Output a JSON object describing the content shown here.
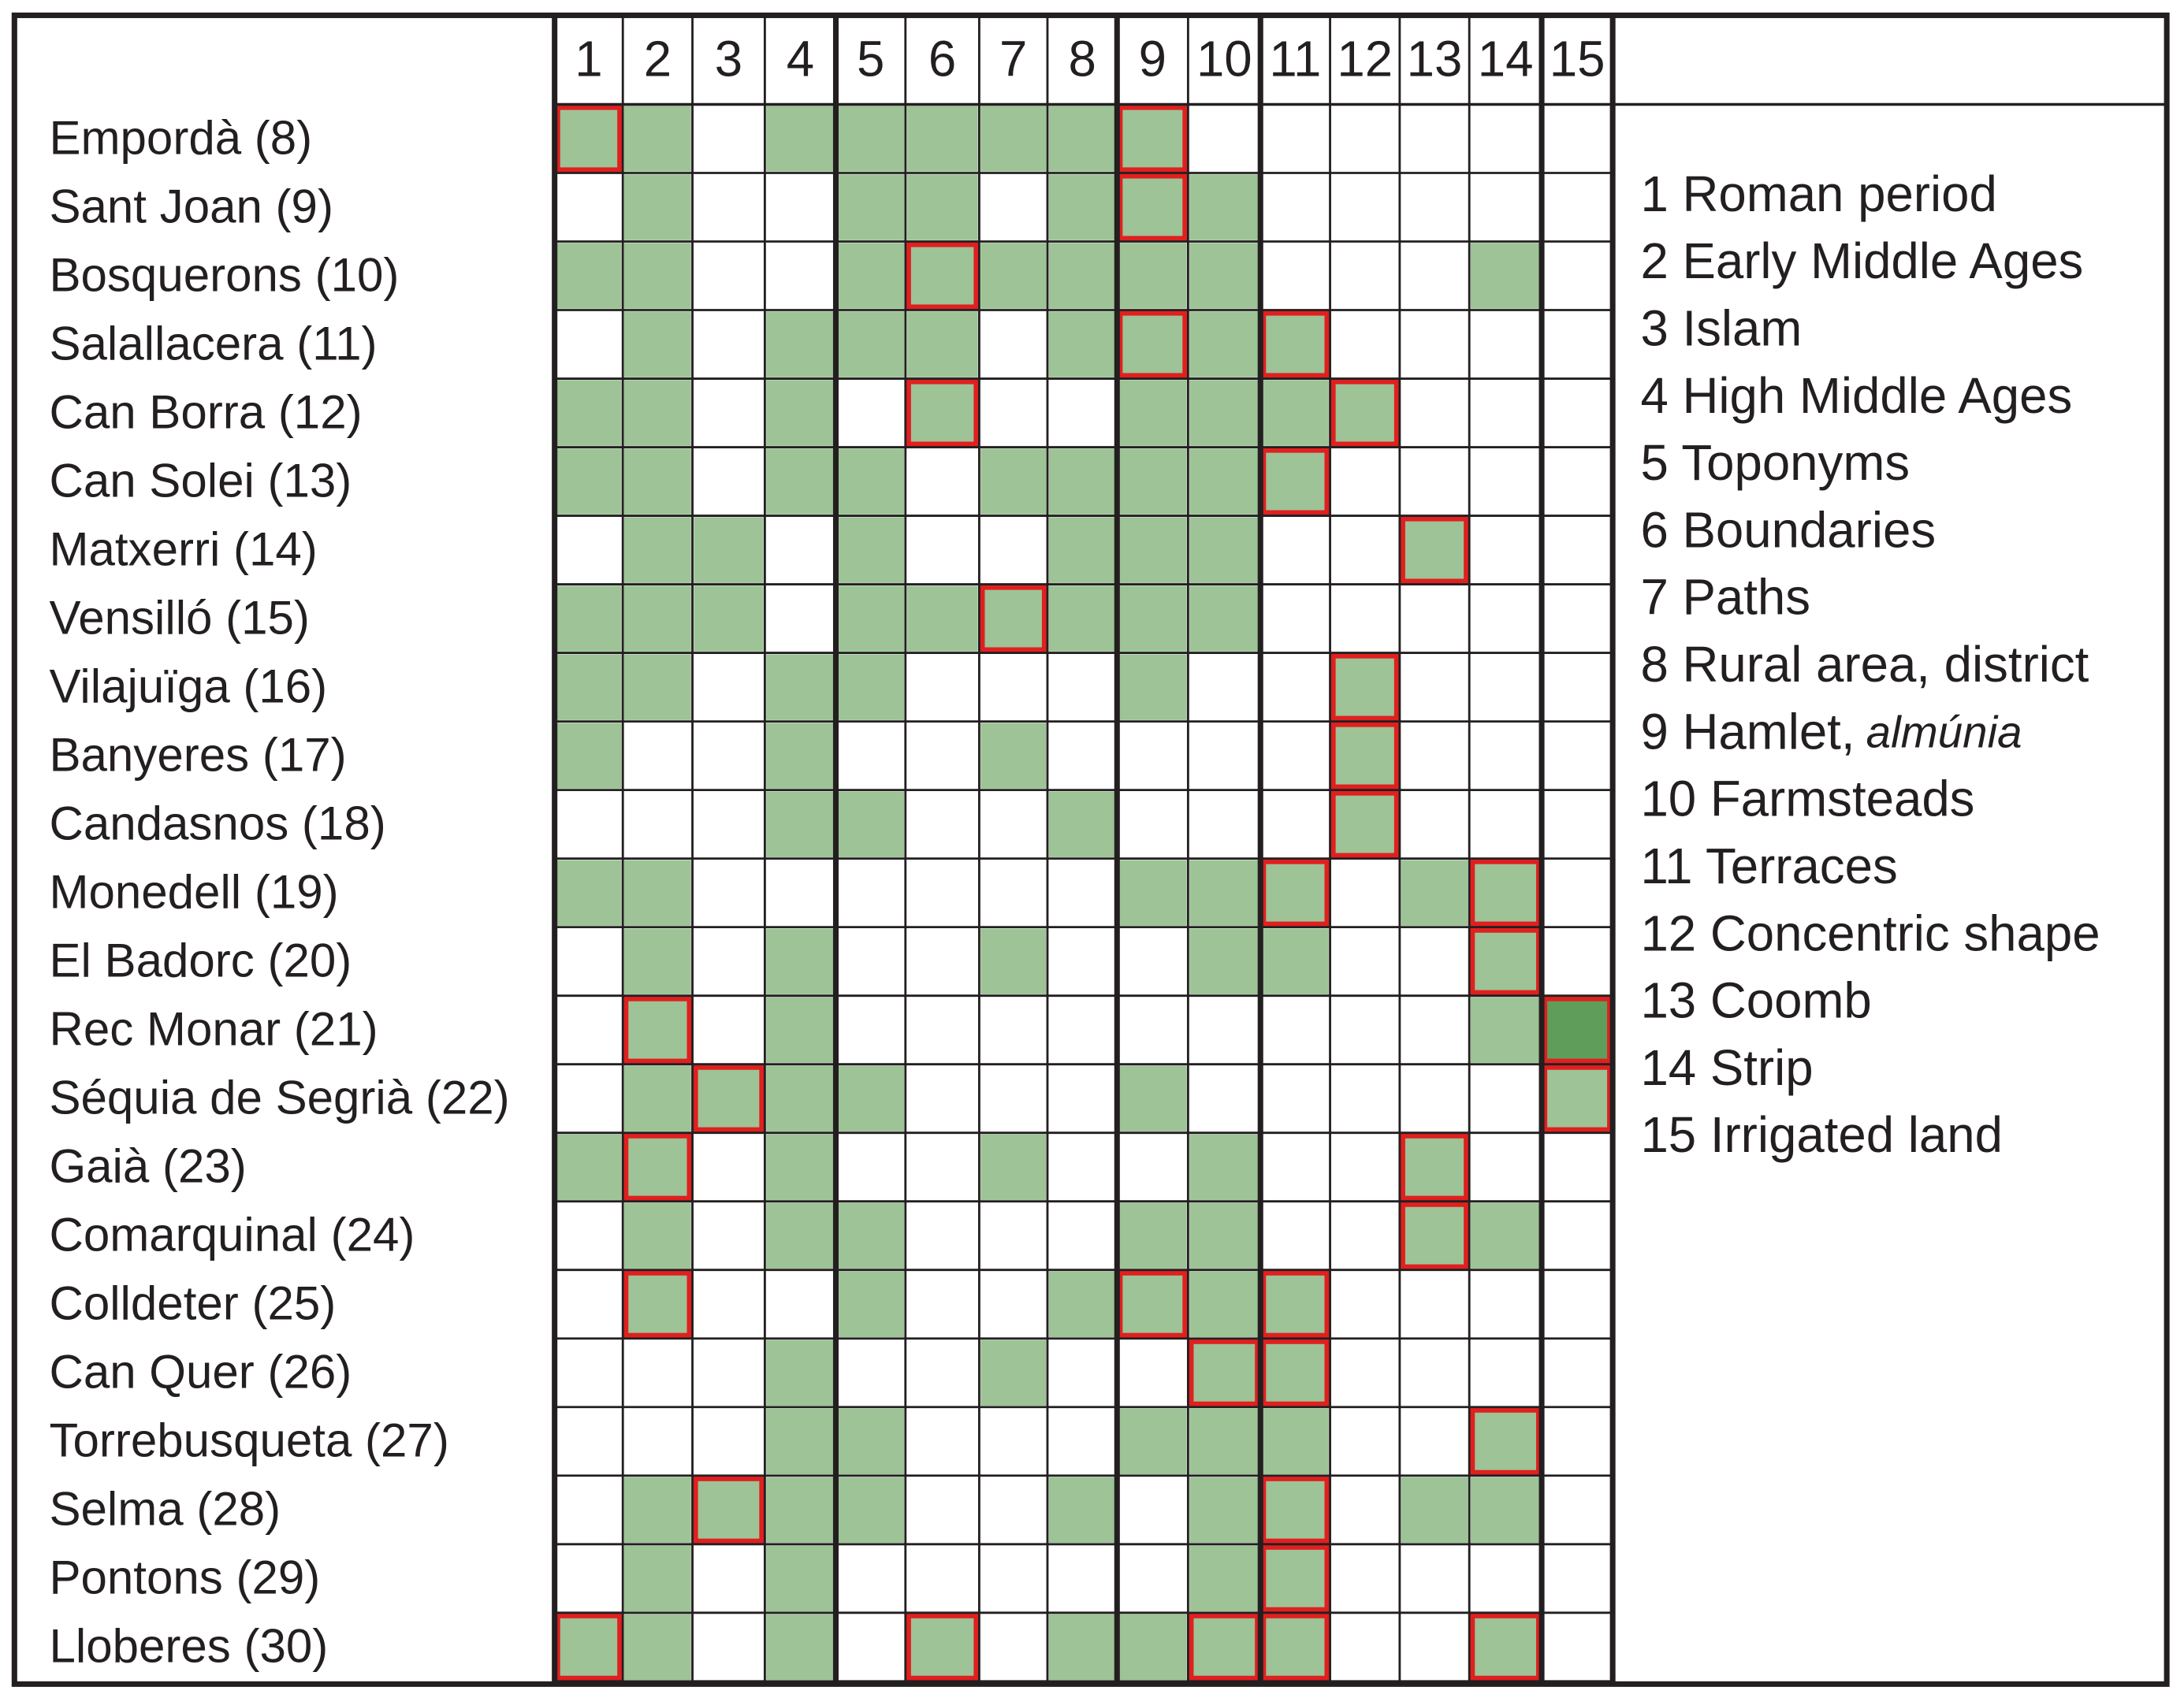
{
  "table": {
    "columns": [
      1,
      2,
      3,
      4,
      5,
      6,
      7,
      8,
      9,
      10,
      11,
      12,
      13,
      14,
      15
    ],
    "rows": [
      "Empordà (8)",
      "Sant Joan (9)",
      "Bosquerons (10)",
      "Salallacera (11)",
      "Can Borra (12)",
      "Can Solei (13)",
      "Matxerri (14)",
      "Vensilló (15)",
      "Vilajuïga (16)",
      "Banyeres (17)",
      "Candasnos (18)",
      "Monedell (19)",
      "El Badorc (20)",
      "Rec Monar (21)",
      "Séquia de Segrià (22)",
      "Gaià (23)",
      "Comarquinal (24)",
      "Colldeter (25)",
      "Can Quer (26)",
      "Torrebusqueta (27)",
      "Selma (28)",
      "Pontons (29)",
      "Lloberes (30)"
    ]
  },
  "legend": {
    "items": [
      {
        "text": "1 Roman period"
      },
      {
        "text": "2 Early Middle Ages"
      },
      {
        "text": "3 Islam"
      },
      {
        "text": "4 High Middle Ages"
      },
      {
        "text": "5 Toponyms"
      },
      {
        "text": "6 Boundaries"
      },
      {
        "text": "7 Paths"
      },
      {
        "text": "8 Rural area, district"
      },
      {
        "text": "9 Hamlet,",
        "italic": "almúnia"
      },
      {
        "text": "10 Farmsteads"
      },
      {
        "text": "11 Terraces"
      },
      {
        "text": "12 Concentric shape"
      },
      {
        "text": "13 Coomb"
      },
      {
        "text": "14 Strip"
      },
      {
        "text": "15 Irrigated land"
      }
    ]
  }
}
